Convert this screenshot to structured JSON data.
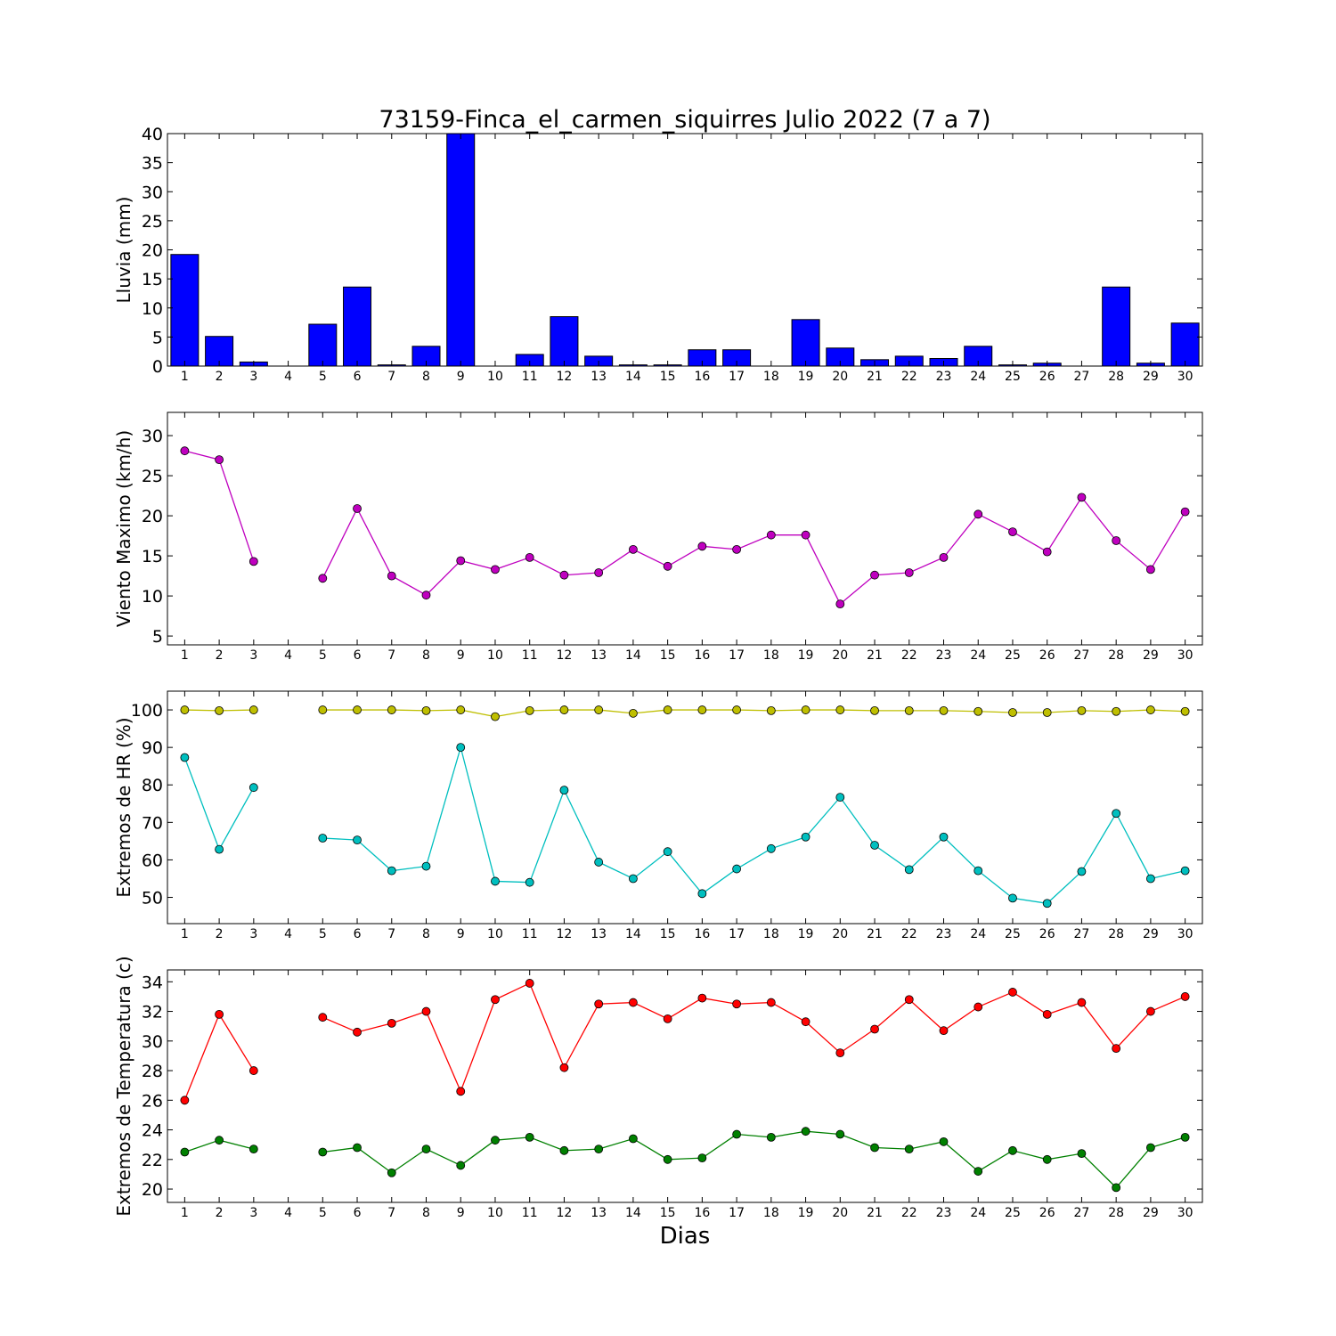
{
  "figure": {
    "title": "73159-Finca_el_carmen_siquirres Julio 2022  (7 a 7)",
    "xlabel": "Dias"
  },
  "chart_data": [
    {
      "id": "lluvia",
      "type": "bar",
      "ylabel": "Lluvia (mm)",
      "x": [
        1,
        2,
        3,
        4,
        5,
        6,
        7,
        8,
        9,
        10,
        11,
        12,
        13,
        14,
        15,
        16,
        17,
        18,
        19,
        20,
        21,
        22,
        23,
        24,
        25,
        26,
        27,
        28,
        29,
        30
      ],
      "series": [
        {
          "color": "#0000ff",
          "values": [
            19.2,
            5.1,
            0.7,
            0,
            7.2,
            13.6,
            0.2,
            3.4,
            40,
            0,
            2.0,
            8.5,
            1.7,
            0.2,
            0.2,
            2.8,
            2.8,
            0,
            8.0,
            3.1,
            1.1,
            1.7,
            1.3,
            3.4,
            0.2,
            0.5,
            0,
            13.6,
            0.5,
            7.4
          ]
        }
      ],
      "xlim": [
        0.5,
        30.5
      ],
      "ylim": [
        0,
        40
      ],
      "yticks": [
        0,
        5,
        10,
        15,
        20,
        25,
        30,
        35,
        40
      ],
      "xticks": [
        1,
        2,
        3,
        4,
        5,
        6,
        7,
        8,
        9,
        10,
        11,
        12,
        13,
        14,
        15,
        16,
        17,
        18,
        19,
        20,
        21,
        22,
        23,
        24,
        25,
        26,
        27,
        28,
        29,
        30
      ],
      "grid": false
    },
    {
      "id": "viento",
      "type": "line",
      "ylabel": "Viento Maximo (km/h)",
      "x": [
        1,
        2,
        3,
        4,
        5,
        6,
        7,
        8,
        9,
        10,
        11,
        12,
        13,
        14,
        15,
        16,
        17,
        18,
        19,
        20,
        21,
        22,
        23,
        24,
        25,
        26,
        27,
        28,
        29,
        30
      ],
      "series": [
        {
          "color": "#bf00bf",
          "values": [
            28.1,
            27.0,
            14.3,
            null,
            12.2,
            20.9,
            12.5,
            10.1,
            14.4,
            13.3,
            14.8,
            12.6,
            12.9,
            15.8,
            13.7,
            16.2,
            15.8,
            17.6,
            17.6,
            9.0,
            12.6,
            12.9,
            14.8,
            20.2,
            18.0,
            15.5,
            22.3,
            16.9,
            13.3,
            20.5
          ]
        }
      ],
      "xlim": [
        0.5,
        30.5
      ],
      "ylim": [
        3.9,
        32.9
      ],
      "yticks": [
        5,
        10,
        15,
        20,
        25,
        30
      ],
      "xticks": [
        1,
        2,
        3,
        4,
        5,
        6,
        7,
        8,
        9,
        10,
        11,
        12,
        13,
        14,
        15,
        16,
        17,
        18,
        19,
        20,
        21,
        22,
        23,
        24,
        25,
        26,
        27,
        28,
        29,
        30
      ],
      "grid": false
    },
    {
      "id": "hr",
      "type": "line",
      "ylabel": "Extremos de HR (%)",
      "x": [
        1,
        2,
        3,
        4,
        5,
        6,
        7,
        8,
        9,
        10,
        11,
        12,
        13,
        14,
        15,
        16,
        17,
        18,
        19,
        20,
        21,
        22,
        23,
        24,
        25,
        26,
        27,
        28,
        29,
        30
      ],
      "series": [
        {
          "color": "#bfbf00",
          "values": [
            100,
            99.8,
            100,
            null,
            100,
            100,
            100,
            99.8,
            100,
            98.2,
            99.8,
            100,
            100,
            99.1,
            100,
            100,
            100,
            99.8,
            100,
            100,
            99.8,
            99.8,
            99.8,
            99.6,
            99.3,
            99.3,
            99.8,
            99.6,
            100,
            99.6
          ]
        },
        {
          "color": "#00bfbf",
          "values": [
            87.3,
            62.8,
            79.3,
            null,
            65.8,
            65.3,
            57.1,
            58.3,
            90.0,
            54.3,
            54.0,
            78.6,
            59.4,
            55.0,
            62.2,
            51.0,
            57.6,
            63.0,
            66.1,
            76.7,
            63.9,
            57.4,
            66.1,
            57.1,
            49.8,
            48.4,
            56.9,
            72.4,
            55.0,
            57.1
          ]
        }
      ],
      "xlim": [
        0.5,
        30.5
      ],
      "ylim": [
        43,
        105
      ],
      "yticks": [
        50,
        60,
        70,
        80,
        90,
        100
      ],
      "xticks": [
        1,
        2,
        3,
        4,
        5,
        6,
        7,
        8,
        9,
        10,
        11,
        12,
        13,
        14,
        15,
        16,
        17,
        18,
        19,
        20,
        21,
        22,
        23,
        24,
        25,
        26,
        27,
        28,
        29,
        30
      ],
      "grid": false
    },
    {
      "id": "temperatura",
      "type": "line",
      "ylabel": "Extremos de Temperatura (c)",
      "x": [
        1,
        2,
        3,
        4,
        5,
        6,
        7,
        8,
        9,
        10,
        11,
        12,
        13,
        14,
        15,
        16,
        17,
        18,
        19,
        20,
        21,
        22,
        23,
        24,
        25,
        26,
        27,
        28,
        29,
        30
      ],
      "series": [
        {
          "color": "#ff0000",
          "values": [
            26.0,
            31.8,
            28.0,
            null,
            31.6,
            30.6,
            31.2,
            32.0,
            26.6,
            32.8,
            33.9,
            28.2,
            32.5,
            32.6,
            31.5,
            32.9,
            32.5,
            32.6,
            31.3,
            29.2,
            30.8,
            32.8,
            30.7,
            32.3,
            33.3,
            31.8,
            32.6,
            29.5,
            32.0,
            33.0
          ]
        },
        {
          "color": "#008000",
          "values": [
            22.5,
            23.3,
            22.7,
            null,
            22.5,
            22.8,
            21.1,
            22.7,
            21.6,
            23.3,
            23.5,
            22.6,
            22.7,
            23.4,
            22.0,
            22.1,
            23.7,
            23.5,
            23.9,
            23.7,
            22.8,
            22.7,
            23.2,
            21.2,
            22.6,
            22.0,
            22.4,
            20.1,
            22.8,
            23.5
          ]
        }
      ],
      "xlim": [
        0.5,
        30.5
      ],
      "ylim": [
        19.1,
        34.8
      ],
      "yticks": [
        20,
        22,
        24,
        26,
        28,
        30,
        32,
        34
      ],
      "xticks": [
        1,
        2,
        3,
        4,
        5,
        6,
        7,
        8,
        9,
        10,
        11,
        12,
        13,
        14,
        15,
        16,
        17,
        18,
        19,
        20,
        21,
        22,
        23,
        24,
        25,
        26,
        27,
        28,
        29,
        30
      ],
      "grid": false
    }
  ]
}
